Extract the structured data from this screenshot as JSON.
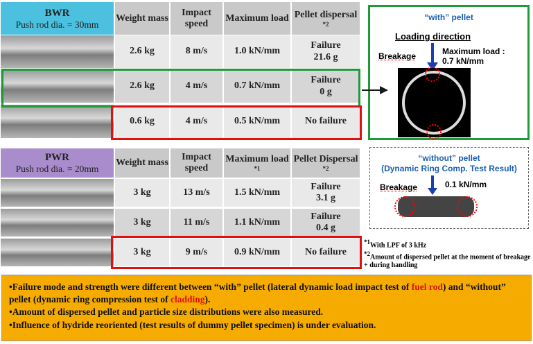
{
  "bwr": {
    "name": "BWR",
    "rod": "Push rod dia. = 30mm",
    "columns": [
      {
        "text": "Weight mass"
      },
      {
        "text": "Impact speed"
      },
      {
        "text": "Maximum load"
      },
      {
        "text": "Pellet dispersal",
        "note": "*2"
      }
    ],
    "rows": [
      [
        "2.6 kg",
        "8 m/s",
        "1.0 kN/mm",
        [
          "Failure",
          "21.6 g"
        ]
      ],
      [
        "2.6 kg",
        "4 m/s",
        "0.7 kN/mm",
        [
          "Failure",
          "0 g"
        ]
      ],
      [
        "0.6 kg",
        "4 m/s",
        "0.5 kN/mm",
        [
          "No failure"
        ]
      ]
    ]
  },
  "pwr": {
    "name": "PWR",
    "rod": "Push rod dia. = 20mm",
    "columns": [
      {
        "text": "Weight mass"
      },
      {
        "text": "Impact speed"
      },
      {
        "text": "Maximum load",
        "note": "*1"
      },
      {
        "text": "Pellet Dispersal",
        "note": "*2"
      }
    ],
    "rows": [
      [
        "3 kg",
        "13 m/s",
        "1.5 kN/mm",
        [
          "Failure",
          "3.1 g"
        ]
      ],
      [
        "3 kg",
        "11 m/s",
        "1.1 kN/mm",
        [
          "Failure",
          "0.4 g"
        ]
      ],
      [
        "3 kg",
        "9 m/s",
        "0.9 kN/mm",
        [
          "No failure"
        ]
      ]
    ]
  },
  "with_panel": {
    "title": "“with” pellet",
    "direction": "Loading direction",
    "breakage": "Breakage",
    "max_load": "Maximum load :",
    "max_load_value": "0.7 kN/mm"
  },
  "without_panel": {
    "title": "“without” pellet",
    "subtitle": "(Dynamic Ring Comp. Test Result)",
    "breakage": "Breakage",
    "load": "0.1 kN/mm"
  },
  "footnotes": [
    {
      "mark": "*1",
      "text": "With LPF of 3 kHz"
    },
    {
      "mark": "*2",
      "text": "Amount of dispersed pellet at the moment of breakage + during handling"
    }
  ],
  "summary": [
    [
      "•Failure mode and strength were different between “with” pellet (lateral dynamic load impact test of ",
      "fuel rod",
      ") and “without” pellet (dynamic ring compression test of ",
      "cladding",
      ")."
    ],
    [
      "•Amount of dispersed pellet and particle size distributions were also measured."
    ],
    [
      "•Influence of hydride reoriented (test results of dummy pellet specimen) is under evaluation."
    ]
  ]
}
